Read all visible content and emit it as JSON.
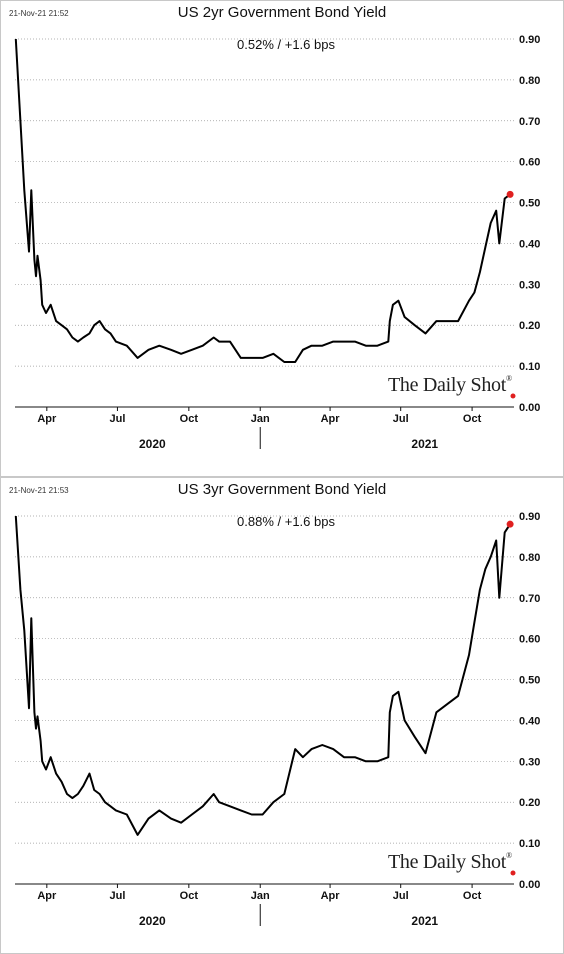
{
  "chart_data": [
    {
      "type": "line",
      "title": "US 2yr Government Bond Yield",
      "timestamp": "21-Nov-21 21:52",
      "readout": "0.52%  /  +1.6 bps",
      "brand": "The Daily Shot",
      "ylim": [
        0,
        0.9
      ],
      "yticks": [
        "0.00",
        "0.10",
        "0.20",
        "0.30",
        "0.40",
        "0.50",
        "0.60",
        "0.70",
        "0.80",
        "0.90"
      ],
      "xticks": [
        "Apr",
        "Jul",
        "Oct",
        "Jan",
        "Apr",
        "Jul",
        "Oct"
      ],
      "years": [
        "2020",
        "2021"
      ],
      "grid": true,
      "last_point_color": "#e02020",
      "series": [
        {
          "x": [
            "2020-02-21",
            "2020-02-27",
            "2020-03-03",
            "2020-03-09",
            "2020-03-12",
            "2020-03-16",
            "2020-03-18",
            "2020-03-20",
            "2020-03-24",
            "2020-03-26",
            "2020-03-31",
            "2020-04-06",
            "2020-04-13",
            "2020-04-20",
            "2020-04-27",
            "2020-05-04",
            "2020-05-11",
            "2020-05-18",
            "2020-05-26",
            "2020-06-01",
            "2020-06-08",
            "2020-06-15",
            "2020-06-22",
            "2020-06-29",
            "2020-07-13",
            "2020-07-27",
            "2020-08-10",
            "2020-08-24",
            "2020-09-08",
            "2020-09-21",
            "2020-10-05",
            "2020-10-19",
            "2020-11-02",
            "2020-11-09",
            "2020-11-23",
            "2020-12-07",
            "2020-12-21",
            "2021-01-04",
            "2021-01-18",
            "2021-02-01",
            "2021-02-15",
            "2021-02-25",
            "2021-03-08",
            "2021-03-22",
            "2021-04-05",
            "2021-04-19",
            "2021-05-03",
            "2021-05-17",
            "2021-06-01",
            "2021-06-15",
            "2021-06-17",
            "2021-06-21",
            "2021-06-28",
            "2021-07-06",
            "2021-07-19",
            "2021-08-02",
            "2021-08-16",
            "2021-08-30",
            "2021-09-13",
            "2021-09-27",
            "2021-10-04",
            "2021-10-11",
            "2021-10-18",
            "2021-10-25",
            "2021-11-01",
            "2021-11-05",
            "2021-11-12",
            "2021-11-19"
          ],
          "y": [
            0.9,
            0.7,
            0.53,
            0.38,
            0.53,
            0.36,
            0.32,
            0.37,
            0.31,
            0.25,
            0.23,
            0.25,
            0.21,
            0.2,
            0.19,
            0.17,
            0.16,
            0.17,
            0.18,
            0.2,
            0.21,
            0.19,
            0.18,
            0.16,
            0.15,
            0.12,
            0.14,
            0.15,
            0.14,
            0.13,
            0.14,
            0.15,
            0.17,
            0.16,
            0.16,
            0.12,
            0.12,
            0.12,
            0.13,
            0.11,
            0.11,
            0.14,
            0.15,
            0.15,
            0.16,
            0.16,
            0.16,
            0.15,
            0.15,
            0.16,
            0.21,
            0.25,
            0.26,
            0.22,
            0.2,
            0.18,
            0.21,
            0.21,
            0.21,
            0.26,
            0.28,
            0.33,
            0.39,
            0.45,
            0.48,
            0.4,
            0.51,
            0.52
          ]
        }
      ]
    },
    {
      "type": "line",
      "title": "US 3yr Government Bond Yield",
      "timestamp": "21-Nov-21 21:53",
      "readout": "0.88%  /  +1.6 bps",
      "brand": "The Daily Shot",
      "ylim": [
        0,
        0.9
      ],
      "yticks": [
        "0.00",
        "0.10",
        "0.20",
        "0.30",
        "0.40",
        "0.50",
        "0.60",
        "0.70",
        "0.80",
        "0.90"
      ],
      "xticks": [
        "Apr",
        "Jul",
        "Oct",
        "Jan",
        "Apr",
        "Jul",
        "Oct"
      ],
      "years": [
        "2020",
        "2021"
      ],
      "grid": true,
      "last_point_color": "#e02020",
      "series": [
        {
          "x": [
            "2020-02-21",
            "2020-02-27",
            "2020-03-03",
            "2020-03-09",
            "2020-03-12",
            "2020-03-16",
            "2020-03-18",
            "2020-03-20",
            "2020-03-24",
            "2020-03-26",
            "2020-03-31",
            "2020-04-06",
            "2020-04-13",
            "2020-04-20",
            "2020-04-27",
            "2020-05-04",
            "2020-05-11",
            "2020-05-18",
            "2020-05-26",
            "2020-06-01",
            "2020-06-08",
            "2020-06-15",
            "2020-06-22",
            "2020-06-29",
            "2020-07-13",
            "2020-07-27",
            "2020-08-10",
            "2020-08-24",
            "2020-09-08",
            "2020-09-21",
            "2020-10-05",
            "2020-10-19",
            "2020-11-02",
            "2020-11-09",
            "2020-11-23",
            "2020-12-07",
            "2020-12-21",
            "2021-01-04",
            "2021-01-18",
            "2021-02-01",
            "2021-02-15",
            "2021-02-25",
            "2021-03-08",
            "2021-03-22",
            "2021-04-05",
            "2021-04-19",
            "2021-05-03",
            "2021-05-17",
            "2021-06-01",
            "2021-06-15",
            "2021-06-17",
            "2021-06-21",
            "2021-06-28",
            "2021-07-06",
            "2021-07-19",
            "2021-08-02",
            "2021-08-16",
            "2021-08-30",
            "2021-09-13",
            "2021-09-27",
            "2021-10-04",
            "2021-10-11",
            "2021-10-18",
            "2021-10-25",
            "2021-11-01",
            "2021-11-05",
            "2021-11-12",
            "2021-11-19"
          ],
          "y": [
            0.9,
            0.72,
            0.62,
            0.43,
            0.65,
            0.42,
            0.38,
            0.41,
            0.35,
            0.3,
            0.28,
            0.31,
            0.27,
            0.25,
            0.22,
            0.21,
            0.22,
            0.24,
            0.27,
            0.23,
            0.22,
            0.2,
            0.19,
            0.18,
            0.17,
            0.12,
            0.16,
            0.18,
            0.16,
            0.15,
            0.17,
            0.19,
            0.22,
            0.2,
            0.19,
            0.18,
            0.17,
            0.17,
            0.2,
            0.22,
            0.33,
            0.31,
            0.33,
            0.34,
            0.33,
            0.31,
            0.31,
            0.3,
            0.3,
            0.31,
            0.42,
            0.46,
            0.47,
            0.4,
            0.36,
            0.32,
            0.42,
            0.44,
            0.46,
            0.56,
            0.64,
            0.72,
            0.77,
            0.8,
            0.84,
            0.7,
            0.86,
            0.88
          ]
        }
      ]
    }
  ]
}
